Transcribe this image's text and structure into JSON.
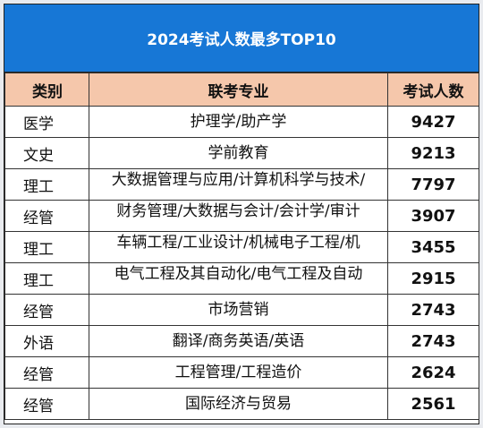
{
  "title": "2024考试人数最多TOP10",
  "headers": {
    "category": "类别",
    "major": "联考专业",
    "count": "考试人数"
  },
  "rows": [
    {
      "category": "医学",
      "major": "护理学/助产学",
      "count": "9427",
      "wrap": false
    },
    {
      "category": "文史",
      "major": "学前教育",
      "count": "9213",
      "wrap": false
    },
    {
      "category": "理工",
      "major": "大数据管理与应用/计算机科学与技术/",
      "count": "7797",
      "wrap": true
    },
    {
      "category": "经管",
      "major": "财务管理/大数据与会计/会计学/审计",
      "count": "3907",
      "wrap": true
    },
    {
      "category": "理工",
      "major": "车辆工程/工业设计/机械电子工程/机",
      "count": "3455",
      "wrap": true
    },
    {
      "category": "理工",
      "major": "电气工程及其自动化/电气工程及自动",
      "count": "2915",
      "wrap": true
    },
    {
      "category": "经管",
      "major": "市场营销",
      "count": "2743",
      "wrap": false
    },
    {
      "category": "外语",
      "major": "翻译/商务英语/英语",
      "count": "2743",
      "wrap": false
    },
    {
      "category": "经管",
      "major": "工程管理/工程造价",
      "count": "2624",
      "wrap": false
    },
    {
      "category": "经管",
      "major": "国际经济与贸易",
      "count": "2561",
      "wrap": false
    }
  ]
}
